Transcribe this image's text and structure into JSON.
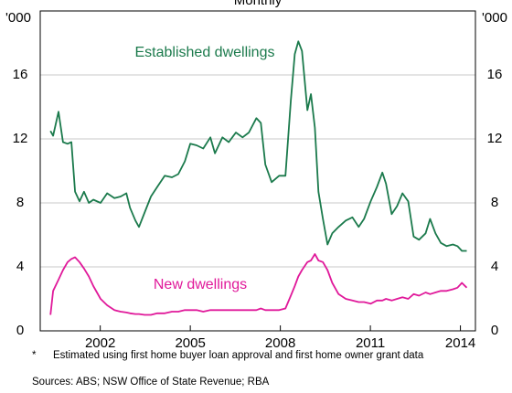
{
  "chart_data": {
    "type": "line",
    "title": "Monthly",
    "y_unit_label": "'000",
    "x": [
      2000.34,
      2000.43,
      2000.61,
      2000.76,
      2000.91,
      2001.04,
      2001.16,
      2001.31,
      2001.46,
      2001.62,
      2001.77,
      2002.01,
      2002.23,
      2002.47,
      2002.68,
      2002.87,
      2002.99,
      2003.17,
      2003.29,
      2003.48,
      2003.69,
      2003.9,
      2004.15,
      2004.39,
      2004.6,
      2004.82,
      2005.0,
      2005.21,
      2005.43,
      2005.67,
      2005.82,
      2006.07,
      2006.28,
      2006.52,
      2006.74,
      2006.95,
      2007.2,
      2007.35,
      2007.5,
      2007.71,
      2007.96,
      2008.17,
      2008.35,
      2008.48,
      2008.6,
      2008.72,
      2008.9,
      2009.02,
      2009.15,
      2009.27,
      2009.42,
      2009.57,
      2009.73,
      2009.94,
      2010.18,
      2010.4,
      2010.61,
      2010.79,
      2011.01,
      2011.22,
      2011.4,
      2011.52,
      2011.71,
      2011.89,
      2012.07,
      2012.26,
      2012.44,
      2012.62,
      2012.84,
      2012.99,
      2013.17,
      2013.35,
      2013.54,
      2013.75,
      2013.9,
      2014.05,
      2014.21
    ],
    "series": [
      {
        "name": "Established dwellings",
        "color": "#1b7a4c",
        "values": [
          12.5,
          12.2,
          13.7,
          11.8,
          11.7,
          11.8,
          8.7,
          8.1,
          8.7,
          8.0,
          8.2,
          8.0,
          8.6,
          8.3,
          8.4,
          8.6,
          7.7,
          6.9,
          6.5,
          7.4,
          8.4,
          9.0,
          9.7,
          9.6,
          9.8,
          10.6,
          11.7,
          11.6,
          11.4,
          12.1,
          11.1,
          12.1,
          11.8,
          12.4,
          12.1,
          12.4,
          13.3,
          13.0,
          10.4,
          9.3,
          9.7,
          9.7,
          14.4,
          17.3,
          18.1,
          17.5,
          13.8,
          14.8,
          12.7,
          8.7,
          7.0,
          5.4,
          6.1,
          6.5,
          6.9,
          7.1,
          6.5,
          7.0,
          8.1,
          9.0,
          9.9,
          9.2,
          7.3,
          7.8,
          8.6,
          8.1,
          5.9,
          5.7,
          6.1,
          7.0,
          6.1,
          5.5,
          5.3,
          5.4,
          5.3,
          5.0,
          5.0
        ]
      },
      {
        "name": "New dwellings",
        "color": "#e0199a",
        "values": [
          1.0,
          2.5,
          3.2,
          3.8,
          4.3,
          4.5,
          4.6,
          4.3,
          3.9,
          3.4,
          2.8,
          2.0,
          1.6,
          1.3,
          1.2,
          1.15,
          1.1,
          1.05,
          1.05,
          1.0,
          1.0,
          1.1,
          1.1,
          1.2,
          1.2,
          1.3,
          1.3,
          1.3,
          1.2,
          1.3,
          1.3,
          1.3,
          1.3,
          1.3,
          1.3,
          1.3,
          1.3,
          1.4,
          1.3,
          1.3,
          1.3,
          1.4,
          2.2,
          2.8,
          3.4,
          3.8,
          4.3,
          4.4,
          4.8,
          4.4,
          4.3,
          3.8,
          3.0,
          2.3,
          2.0,
          1.9,
          1.8,
          1.8,
          1.7,
          1.9,
          1.9,
          2.0,
          1.9,
          2.0,
          2.1,
          2.0,
          2.3,
          2.2,
          2.4,
          2.3,
          2.4,
          2.5,
          2.5,
          2.6,
          2.7,
          3.0,
          2.7
        ]
      }
    ],
    "xlim": [
      2000,
      2014.5
    ],
    "xticks": [
      2002,
      2005,
      2008,
      2011,
      2014
    ],
    "ylim": [
      0,
      20
    ],
    "yticks": [
      0,
      4,
      8,
      12,
      16
    ],
    "grid": true,
    "footnote_marker": "*",
    "footnote": "Estimated using first home buyer loan approval and first home owner grant data",
    "sources": "Sources: ABS; NSW Office of State Revenue; RBA"
  }
}
